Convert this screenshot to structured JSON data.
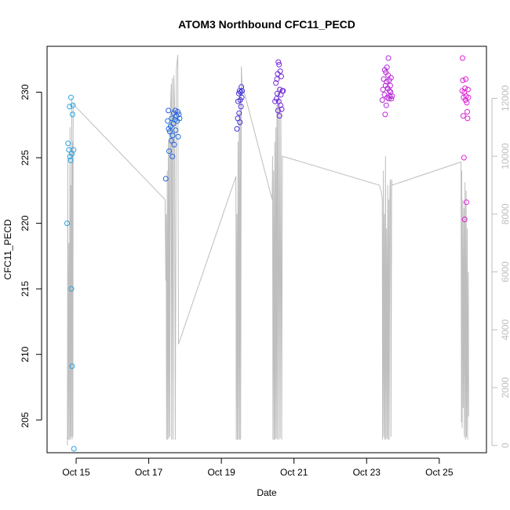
{
  "chart_data": {
    "type": "scatter",
    "title": "ATOM3 Northbound CFC11_PECD",
    "xlabel": "Date",
    "ylabel": "CFC11_PECD",
    "x_ticks": [
      "Oct 15",
      "Oct 17",
      "Oct 19",
      "Oct 21",
      "Oct 23",
      "Oct 25"
    ],
    "x_tick_days": [
      15,
      17,
      19,
      21,
      23,
      25
    ],
    "xlim": [
      14.2,
      26.3
    ],
    "ylim": [
      202.5,
      233.5
    ],
    "y_ticks": [
      205,
      210,
      215,
      220,
      225,
      230
    ],
    "y2_ticks": [
      0,
      2000,
      4000,
      6000,
      8000,
      10000,
      12000
    ],
    "y2lim": [
      -250,
      13800
    ],
    "colors": {
      "line": "#bebebe",
      "axis": "#000000",
      "right_axis": "#bebebe"
    },
    "points": [
      {
        "x": 14.75,
        "y": 220.0,
        "color": "#29a3e0"
      },
      {
        "x": 14.78,
        "y": 226.1,
        "color": "#29a3e0"
      },
      {
        "x": 14.8,
        "y": 225.6,
        "color": "#29a3e0"
      },
      {
        "x": 14.82,
        "y": 228.9,
        "color": "#29a3e0"
      },
      {
        "x": 14.83,
        "y": 225.1,
        "color": "#29a3e0"
      },
      {
        "x": 14.85,
        "y": 224.8,
        "color": "#29a3e0"
      },
      {
        "x": 14.86,
        "y": 229.6,
        "color": "#29a3e0"
      },
      {
        "x": 14.87,
        "y": 215.0,
        "color": "#29a3e0"
      },
      {
        "x": 14.88,
        "y": 225.3,
        "color": "#29a3e0"
      },
      {
        "x": 14.89,
        "y": 209.1,
        "color": "#29a3e0"
      },
      {
        "x": 14.9,
        "y": 228.3,
        "color": "#29a3e0"
      },
      {
        "x": 14.91,
        "y": 229.0,
        "color": "#29a3e0"
      },
      {
        "x": 14.93,
        "y": 225.6,
        "color": "#29a3e0"
      },
      {
        "x": 14.94,
        "y": 202.8,
        "color": "#29a3e0"
      },
      {
        "x": 17.47,
        "y": 223.4,
        "color": "#1a5fd0"
      },
      {
        "x": 17.52,
        "y": 227.8,
        "color": "#1a6fe0"
      },
      {
        "x": 17.54,
        "y": 228.6,
        "color": "#2a60e0"
      },
      {
        "x": 17.55,
        "y": 227.2,
        "color": "#1a6fe0"
      },
      {
        "x": 17.56,
        "y": 225.5,
        "color": "#1a6fe0"
      },
      {
        "x": 17.58,
        "y": 227.0,
        "color": "#2a60e0"
      },
      {
        "x": 17.6,
        "y": 227.4,
        "color": "#1a6fe0"
      },
      {
        "x": 17.62,
        "y": 226.3,
        "color": "#2a60e0"
      },
      {
        "x": 17.63,
        "y": 228.0,
        "color": "#1a6fe0"
      },
      {
        "x": 17.65,
        "y": 225.1,
        "color": "#2a60e0"
      },
      {
        "x": 17.66,
        "y": 226.7,
        "color": "#1a6fe0"
      },
      {
        "x": 17.68,
        "y": 227.6,
        "color": "#2a60e0"
      },
      {
        "x": 17.69,
        "y": 228.4,
        "color": "#1a6fe0"
      },
      {
        "x": 17.7,
        "y": 226.0,
        "color": "#2a60e0"
      },
      {
        "x": 17.72,
        "y": 227.9,
        "color": "#1a6fe0"
      },
      {
        "x": 17.73,
        "y": 228.6,
        "color": "#2a60e0"
      },
      {
        "x": 17.74,
        "y": 227.1,
        "color": "#1a6fe0"
      },
      {
        "x": 17.76,
        "y": 228.2,
        "color": "#2a60e0"
      },
      {
        "x": 17.78,
        "y": 227.8,
        "color": "#1a6fe0"
      },
      {
        "x": 17.8,
        "y": 228.5,
        "color": "#2a60e0"
      },
      {
        "x": 17.81,
        "y": 226.6,
        "color": "#1a6fe0"
      },
      {
        "x": 17.83,
        "y": 228.3,
        "color": "#2a60e0"
      },
      {
        "x": 17.85,
        "y": 228.0,
        "color": "#1a6fe0"
      },
      {
        "x": 19.43,
        "y": 227.2,
        "color": "#3a30d8"
      },
      {
        "x": 19.45,
        "y": 228.0,
        "color": "#4a30d8"
      },
      {
        "x": 19.46,
        "y": 229.3,
        "color": "#3a30d8"
      },
      {
        "x": 19.48,
        "y": 229.9,
        "color": "#4a30d8"
      },
      {
        "x": 19.49,
        "y": 228.4,
        "color": "#3a30d8"
      },
      {
        "x": 19.5,
        "y": 230.1,
        "color": "#4a30d8"
      },
      {
        "x": 19.51,
        "y": 227.7,
        "color": "#3a30d8"
      },
      {
        "x": 19.52,
        "y": 229.4,
        "color": "#4a30d8"
      },
      {
        "x": 19.53,
        "y": 230.0,
        "color": "#3a30d8"
      },
      {
        "x": 19.54,
        "y": 228.9,
        "color": "#4a30d8"
      },
      {
        "x": 19.55,
        "y": 230.4,
        "color": "#3a30d8"
      },
      {
        "x": 19.56,
        "y": 229.6,
        "color": "#4a30d8"
      },
      {
        "x": 19.57,
        "y": 230.1,
        "color": "#3a30d8"
      },
      {
        "x": 20.48,
        "y": 229.3,
        "color": "#6a28d8"
      },
      {
        "x": 20.5,
        "y": 230.7,
        "color": "#7a28d8"
      },
      {
        "x": 20.52,
        "y": 229.5,
        "color": "#6a28d8"
      },
      {
        "x": 20.53,
        "y": 231.0,
        "color": "#7a28d8"
      },
      {
        "x": 20.54,
        "y": 229.9,
        "color": "#6a28d8"
      },
      {
        "x": 20.55,
        "y": 231.4,
        "color": "#7a28d8"
      },
      {
        "x": 20.56,
        "y": 228.6,
        "color": "#6a28d8"
      },
      {
        "x": 20.57,
        "y": 232.3,
        "color": "#7a28d8"
      },
      {
        "x": 20.58,
        "y": 229.3,
        "color": "#6a28d8"
      },
      {
        "x": 20.59,
        "y": 232.1,
        "color": "#7a28d8"
      },
      {
        "x": 20.6,
        "y": 228.2,
        "color": "#6a28d8"
      },
      {
        "x": 20.61,
        "y": 230.2,
        "color": "#7a28d8"
      },
      {
        "x": 20.62,
        "y": 231.6,
        "color": "#6a28d8"
      },
      {
        "x": 20.63,
        "y": 229.0,
        "color": "#7a28d8"
      },
      {
        "x": 20.64,
        "y": 229.8,
        "color": "#6a28d8"
      },
      {
        "x": 20.65,
        "y": 231.2,
        "color": "#7a28d8"
      },
      {
        "x": 20.66,
        "y": 228.7,
        "color": "#6a28d8"
      },
      {
        "x": 20.68,
        "y": 230.1,
        "color": "#7a28d8"
      },
      {
        "x": 20.7,
        "y": 230.1,
        "color": "#6a28d8"
      },
      {
        "x": 23.43,
        "y": 229.4,
        "color": "#b028d8"
      },
      {
        "x": 23.45,
        "y": 230.2,
        "color": "#c028d8"
      },
      {
        "x": 23.47,
        "y": 231.0,
        "color": "#b028d8"
      },
      {
        "x": 23.49,
        "y": 229.8,
        "color": "#c028d8"
      },
      {
        "x": 23.5,
        "y": 231.7,
        "color": "#b028d8"
      },
      {
        "x": 23.51,
        "y": 228.3,
        "color": "#c028d8"
      },
      {
        "x": 23.52,
        "y": 230.5,
        "color": "#b028d8"
      },
      {
        "x": 23.53,
        "y": 231.5,
        "color": "#c028d8"
      },
      {
        "x": 23.54,
        "y": 229.0,
        "color": "#b028d8"
      },
      {
        "x": 23.55,
        "y": 230.8,
        "color": "#c028d8"
      },
      {
        "x": 23.56,
        "y": 231.9,
        "color": "#b028d8"
      },
      {
        "x": 23.57,
        "y": 229.6,
        "color": "#c028d8"
      },
      {
        "x": 23.58,
        "y": 230.3,
        "color": "#b028d8"
      },
      {
        "x": 23.59,
        "y": 231.3,
        "color": "#c028d8"
      },
      {
        "x": 23.6,
        "y": 232.6,
        "color": "#b028d8"
      },
      {
        "x": 23.61,
        "y": 229.5,
        "color": "#c028d8"
      },
      {
        "x": 23.62,
        "y": 230.9,
        "color": "#b028d8"
      },
      {
        "x": 23.63,
        "y": 230.1,
        "color": "#c028d8"
      },
      {
        "x": 23.64,
        "y": 229.7,
        "color": "#b028d8"
      },
      {
        "x": 23.65,
        "y": 230.5,
        "color": "#c028d8"
      },
      {
        "x": 23.66,
        "y": 230.0,
        "color": "#b028d8"
      },
      {
        "x": 23.67,
        "y": 231.1,
        "color": "#c028d8"
      },
      {
        "x": 23.68,
        "y": 229.5,
        "color": "#b028d8"
      },
      {
        "x": 23.7,
        "y": 229.7,
        "color": "#c028d8"
      },
      {
        "x": 25.63,
        "y": 230.1,
        "color": "#e020d8"
      },
      {
        "x": 25.64,
        "y": 232.6,
        "color": "#e020d8"
      },
      {
        "x": 25.65,
        "y": 230.9,
        "color": "#e020d8"
      },
      {
        "x": 25.66,
        "y": 228.2,
        "color": "#e020d8"
      },
      {
        "x": 25.67,
        "y": 229.6,
        "color": "#e020d8"
      },
      {
        "x": 25.68,
        "y": 225.0,
        "color": "#e020d8"
      },
      {
        "x": 25.69,
        "y": 230.0,
        "color": "#e020d8"
      },
      {
        "x": 25.7,
        "y": 220.3,
        "color": "#e020d8"
      },
      {
        "x": 25.71,
        "y": 230.3,
        "color": "#e020d8"
      },
      {
        "x": 25.72,
        "y": 229.4,
        "color": "#e020d8"
      },
      {
        "x": 25.73,
        "y": 231.0,
        "color": "#e020d8"
      },
      {
        "x": 25.74,
        "y": 229.7,
        "color": "#e020d8"
      },
      {
        "x": 25.75,
        "y": 221.6,
        "color": "#e020d8"
      },
      {
        "x": 25.76,
        "y": 229.2,
        "color": "#e020d8"
      },
      {
        "x": 25.77,
        "y": 228.5,
        "color": "#e020d8"
      },
      {
        "x": 25.78,
        "y": 228.0,
        "color": "#e020d8"
      },
      {
        "x": 25.79,
        "y": 230.2,
        "color": "#e020d8"
      },
      {
        "x": 25.8,
        "y": 229.6,
        "color": "#e020d8"
      }
    ],
    "line_series": [
      [
        14.76,
        0
      ],
      [
        14.77,
        10000
      ],
      [
        14.78,
        200
      ],
      [
        14.8,
        7000
      ],
      [
        14.81,
        200
      ],
      [
        14.83,
        11000
      ],
      [
        14.84,
        200
      ],
      [
        14.85,
        9000
      ],
      [
        14.86,
        300
      ],
      [
        14.88,
        12000
      ],
      [
        14.89,
        200
      ],
      [
        14.9,
        10500
      ],
      [
        14.91,
        300
      ],
      [
        14.92,
        11800
      ],
      [
        17.45,
        8500
      ],
      [
        17.46,
        7000
      ],
      [
        17.47,
        5700
      ],
      [
        17.48,
        8000
      ],
      [
        17.49,
        200
      ],
      [
        17.51,
        9500
      ],
      [
        17.52,
        200
      ],
      [
        17.54,
        10500
      ],
      [
        17.55,
        250
      ],
      [
        17.57,
        11200
      ],
      [
        17.58,
        300
      ],
      [
        17.6,
        11800
      ],
      [
        17.62,
        12500
      ],
      [
        17.63,
        200
      ],
      [
        17.65,
        12700
      ],
      [
        17.67,
        200
      ],
      [
        17.69,
        12800
      ],
      [
        17.71,
        11900
      ],
      [
        17.73,
        200
      ],
      [
        17.76,
        13000
      ],
      [
        17.8,
        13500
      ],
      [
        17.82,
        3500
      ],
      [
        19.4,
        9300
      ],
      [
        19.41,
        200
      ],
      [
        19.43,
        8000
      ],
      [
        19.44,
        200
      ],
      [
        19.46,
        10500
      ],
      [
        19.47,
        200
      ],
      [
        19.49,
        11500
      ],
      [
        19.5,
        200
      ],
      [
        19.52,
        12200
      ],
      [
        19.53,
        200
      ],
      [
        19.55,
        13100
      ],
      [
        19.57,
        12500
      ],
      [
        20.4,
        8500
      ],
      [
        20.41,
        10000
      ],
      [
        20.42,
        200
      ],
      [
        20.44,
        9500
      ],
      [
        20.45,
        200
      ],
      [
        20.47,
        10500
      ],
      [
        20.48,
        200
      ],
      [
        20.5,
        11000
      ],
      [
        20.51,
        250
      ],
      [
        20.53,
        11800
      ],
      [
        20.54,
        200
      ],
      [
        20.56,
        12400
      ],
      [
        20.58,
        200
      ],
      [
        20.6,
        12000
      ],
      [
        20.62,
        250
      ],
      [
        20.64,
        11600
      ],
      [
        20.66,
        200
      ],
      [
        20.68,
        10000
      ],
      [
        23.35,
        9000
      ],
      [
        23.4,
        8800
      ],
      [
        23.43,
        8500
      ],
      [
        23.44,
        200
      ],
      [
        23.46,
        9500
      ],
      [
        23.47,
        300
      ],
      [
        23.49,
        8000
      ],
      [
        23.5,
        200
      ],
      [
        23.52,
        10000
      ],
      [
        23.53,
        200
      ],
      [
        23.55,
        7500
      ],
      [
        23.56,
        250
      ],
      [
        23.58,
        9000
      ],
      [
        23.59,
        200
      ],
      [
        23.61,
        8500
      ],
      [
        23.62,
        200
      ],
      [
        23.64,
        8700
      ],
      [
        23.65,
        9200
      ],
      [
        23.66,
        8900
      ],
      [
        23.67,
        300
      ],
      [
        23.69,
        9200
      ],
      [
        23.7,
        9000
      ],
      [
        25.6,
        9800
      ],
      [
        25.61,
        800
      ],
      [
        25.62,
        9500
      ],
      [
        25.63,
        600
      ],
      [
        25.65,
        8500
      ],
      [
        25.66,
        1300
      ],
      [
        25.68,
        8200
      ],
      [
        25.69,
        300
      ],
      [
        25.71,
        9100
      ],
      [
        25.72,
        200
      ],
      [
        25.74,
        8800
      ],
      [
        25.75,
        300
      ],
      [
        25.77,
        7500
      ],
      [
        25.78,
        200
      ],
      [
        25.8,
        6000
      ],
      [
        25.81,
        1000
      ]
    ]
  }
}
